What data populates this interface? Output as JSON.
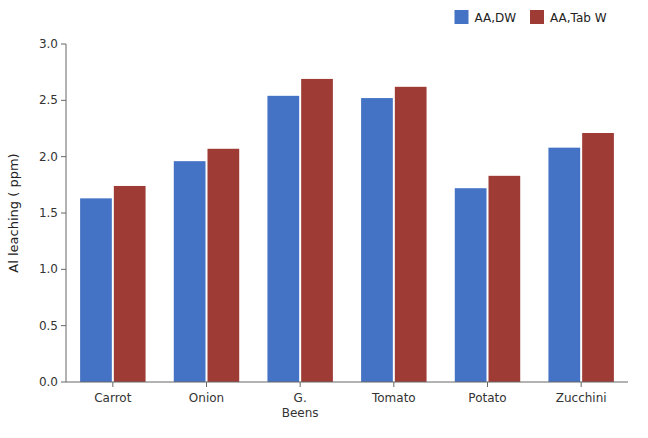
{
  "chart_data": {
    "type": "bar",
    "categories": [
      "Carrot",
      "Onion",
      "G.\nBeens",
      "Tomato",
      "Potato",
      "Zucchini"
    ],
    "series": [
      {
        "name": "AA,DW",
        "color": "#4472C4",
        "values": [
          1.63,
          1.96,
          2.54,
          2.52,
          1.72,
          2.08
        ]
      },
      {
        "name": "AA,Tab W",
        "color": "#9E3B35",
        "values": [
          1.74,
          2.07,
          2.69,
          2.62,
          1.83,
          2.21
        ]
      }
    ],
    "ylabel": "Al leaching ( ppm)",
    "ylim": [
      0,
      3
    ],
    "yticks": [
      {
        "value": 0,
        "label": "0.0"
      },
      0.5,
      {
        "value": 1,
        "label": "1.0"
      },
      1.5,
      {
        "value": 2,
        "label": "2.0"
      },
      2.5,
      {
        "value": 3,
        "label": "3.0"
      }
    ],
    "grid": false,
    "legend": "upper right"
  }
}
